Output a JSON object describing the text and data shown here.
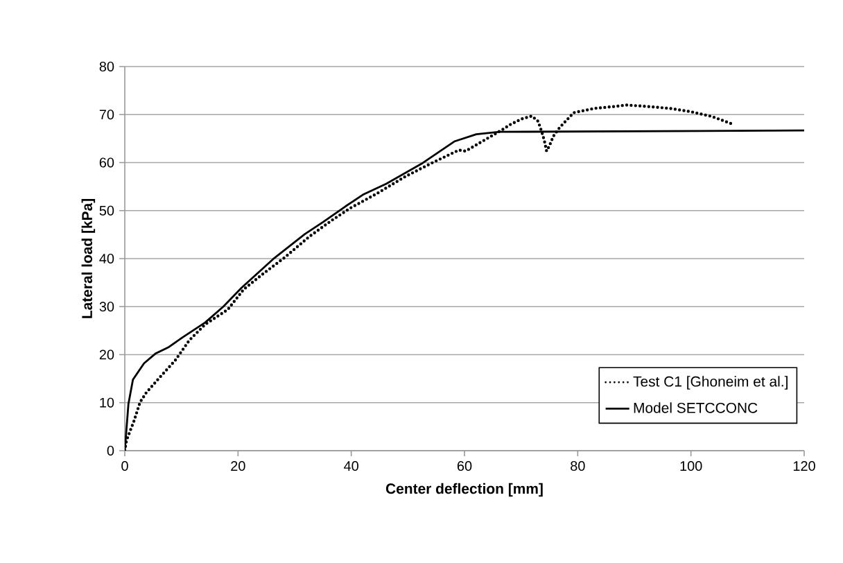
{
  "chart_data": {
    "type": "line",
    "xlabel": "Center deflection [mm]",
    "ylabel": "Lateral load [kPa]",
    "xlim": [
      0,
      120
    ],
    "ylim": [
      0,
      80
    ],
    "xticks": [
      0,
      20,
      40,
      60,
      80,
      100,
      120
    ],
    "yticks": [
      0,
      10,
      20,
      30,
      40,
      50,
      60,
      70,
      80
    ],
    "grid": "y",
    "legend": "bottom right",
    "series": [
      {
        "name": "Test C1 [Ghoneim et al.]",
        "color": "#000000",
        "line_style": "dotted",
        "x": [
          0,
          0.3,
          1,
          1.6,
          2.7,
          3.8,
          6.2,
          8.9,
          11.4,
          14.2,
          18.2,
          21,
          24.6,
          28.2,
          32.6,
          36.6,
          39.8,
          44.6,
          49.4,
          54.2,
          59,
          60.2,
          63.4,
          66.6,
          68.2,
          70.1,
          71.9,
          73,
          73.6,
          74.1,
          74.5,
          75,
          75.7,
          76.8,
          78,
          79.3,
          83,
          86.6,
          88.6,
          92.2,
          96.2,
          100,
          103.7,
          107.4
        ],
        "values": [
          0,
          2.1,
          4.3,
          6.1,
          10.1,
          12.1,
          15.3,
          18.8,
          23,
          26.3,
          29.4,
          33.6,
          37,
          40.2,
          44.6,
          48,
          50.5,
          53.6,
          57,
          59.9,
          62.6,
          62.4,
          64.6,
          66.8,
          68,
          69.1,
          69.7,
          68.6,
          66.6,
          64.6,
          62.4,
          63.5,
          65.5,
          67.3,
          68.8,
          70.4,
          71.3,
          71.7,
          72,
          71.7,
          71.3,
          70.6,
          69.6,
          68
        ]
      },
      {
        "name": "Model SETCCONC",
        "color": "#000000",
        "line_style": "solid",
        "x": [
          0,
          0.64,
          1.44,
          3.4,
          5.4,
          7.8,
          10.2,
          14.2,
          17.4,
          20.6,
          26.2,
          31.8,
          35,
          39,
          42.2,
          46.2,
          52.6,
          58.2,
          62.1,
          66.2,
          120
        ],
        "values": [
          0,
          9.7,
          14.8,
          18.2,
          20.2,
          21.6,
          23.6,
          26.7,
          30,
          33.9,
          39.9,
          45.1,
          47.6,
          50.9,
          53.4,
          55.6,
          59.9,
          64.4,
          65.9,
          66.4,
          66.7
        ]
      }
    ]
  }
}
